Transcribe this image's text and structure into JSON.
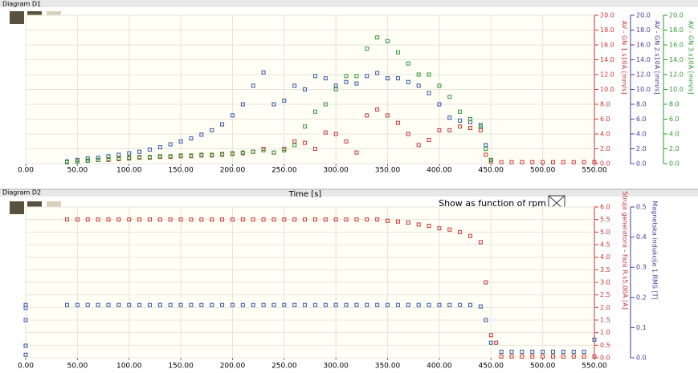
{
  "chart_data": [
    {
      "type": "scatter",
      "title": "Diagram D1",
      "xlabel": "Time [s]",
      "xlim": [
        0,
        550
      ],
      "xticks": [
        {
          "value": 0,
          "label": "0.00"
        },
        {
          "value": 50,
          "label": "50.00"
        },
        {
          "value": 100,
          "label": "100.00"
        },
        {
          "value": 150,
          "label": "150.00"
        },
        {
          "value": 200,
          "label": "200.00"
        },
        {
          "value": 250,
          "label": "250.00"
        },
        {
          "value": 300,
          "label": "300.00"
        },
        {
          "value": 350,
          "label": "350.00"
        },
        {
          "value": 400,
          "label": "400.00"
        },
        {
          "value": 450,
          "label": "450.00"
        },
        {
          "value": 500,
          "label": "500.00"
        },
        {
          "value": 550,
          "label": "550.00"
        }
      ],
      "grid": true,
      "y_axes": [
        {
          "label": "AV - GN 1.s10A [mm/s]",
          "color": "#cc3333",
          "lim": [
            0,
            20
          ],
          "ticks": [
            {
              "value": 0,
              "label": "0.0"
            },
            {
              "value": 2,
              "label": "2.0"
            },
            {
              "value": 4,
              "label": "4.0"
            },
            {
              "value": 6,
              "label": "6.0"
            },
            {
              "value": 8,
              "label": "8.0"
            },
            {
              "value": 10,
              "label": "10.0"
            },
            {
              "value": 12,
              "label": "12.0"
            },
            {
              "value": 14,
              "label": "14.0"
            },
            {
              "value": 16,
              "label": "16.0"
            },
            {
              "value": 18,
              "label": "18.0"
            },
            {
              "value": 20,
              "label": "20.0"
            }
          ]
        },
        {
          "label": "AV - GN 2.s10A [mm/s]",
          "color": "#4a3a9a",
          "lim": [
            0,
            20
          ],
          "ticks": [
            {
              "value": 0,
              "label": "0.0"
            },
            {
              "value": 2,
              "label": "2.0"
            },
            {
              "value": 4,
              "label": "4.0"
            },
            {
              "value": 6,
              "label": "6.0"
            },
            {
              "value": 8,
              "label": "8.0"
            },
            {
              "value": 10,
              "label": "10.0"
            },
            {
              "value": 12,
              "label": "12.0"
            },
            {
              "value": 14,
              "label": "14.0"
            },
            {
              "value": 16,
              "label": "16.0"
            },
            {
              "value": 18,
              "label": "18.0"
            },
            {
              "value": 20,
              "label": "20.0"
            }
          ]
        },
        {
          "label": "AV - GN 3.s10A [mm/s]",
          "color": "#2e9a2e",
          "lim": [
            0,
            20
          ],
          "ticks": [
            {
              "value": 0,
              "label": "0.0"
            },
            {
              "value": 2,
              "label": "2.0"
            },
            {
              "value": 4,
              "label": "4.0"
            },
            {
              "value": 6,
              "label": "6.0"
            },
            {
              "value": 8,
              "label": "8.0"
            },
            {
              "value": 10,
              "label": "10.0"
            },
            {
              "value": 12,
              "label": "12.0"
            },
            {
              "value": 14,
              "label": "14.0"
            },
            {
              "value": 16,
              "label": "16.0"
            },
            {
              "value": 18,
              "label": "18.0"
            },
            {
              "value": 20,
              "label": "20.0"
            }
          ]
        }
      ],
      "series": [
        {
          "color": "#cc3333",
          "axis": 0,
          "x": [
            40,
            50,
            60,
            70,
            80,
            90,
            100,
            110,
            120,
            130,
            140,
            150,
            160,
            170,
            180,
            190,
            200,
            210,
            220,
            230,
            240,
            250,
            260,
            270,
            280,
            290,
            300,
            310,
            320,
            330,
            340,
            350,
            360,
            370,
            380,
            390,
            400,
            410,
            420,
            430,
            440,
            445,
            450,
            460,
            470,
            480,
            490,
            500,
            510,
            520,
            530,
            540,
            550
          ],
          "values": [
            0.2,
            0.3,
            0.4,
            0.5,
            0.5,
            0.6,
            0.7,
            0.8,
            0.8,
            0.9,
            0.9,
            1.0,
            1.0,
            1.1,
            1.1,
            1.2,
            1.3,
            1.4,
            1.6,
            2.0,
            1.5,
            2.0,
            3.0,
            2.8,
            2.0,
            4.2,
            4.0,
            3.0,
            1.5,
            6.5,
            7.3,
            6.5,
            5.5,
            4.0,
            2.5,
            3.2,
            4.5,
            4.5,
            5.0,
            4.8,
            4.5,
            1.2,
            0.3,
            0.2,
            0.2,
            0.2,
            0.2,
            0.2,
            0.2,
            0.2,
            0.2,
            0.2,
            0.2
          ]
        },
        {
          "color": "#3355aa",
          "axis": 1,
          "x": [
            40,
            50,
            60,
            70,
            80,
            90,
            100,
            110,
            120,
            130,
            140,
            150,
            160,
            170,
            180,
            190,
            200,
            210,
            220,
            230,
            240,
            250,
            260,
            270,
            280,
            290,
            300,
            310,
            320,
            330,
            340,
            350,
            360,
            370,
            380,
            390,
            400,
            410,
            420,
            430,
            440,
            445,
            450
          ],
          "values": [
            0.3,
            0.5,
            0.7,
            0.8,
            1.0,
            1.2,
            1.4,
            1.6,
            1.9,
            2.2,
            2.6,
            3.0,
            3.4,
            3.9,
            4.5,
            5.3,
            6.5,
            8.0,
            10.5,
            12.3,
            8.0,
            8.5,
            10.5,
            10.0,
            11.8,
            11.5,
            10.5,
            11.0,
            10.8,
            11.8,
            12.2,
            11.5,
            11.5,
            11.0,
            10.5,
            9.5,
            8.0,
            6.2,
            5.8,
            5.6,
            5.2,
            2.5,
            0.5
          ]
        },
        {
          "color": "#2e9a2e",
          "axis": 2,
          "x": [
            40,
            50,
            60,
            70,
            80,
            90,
            100,
            110,
            120,
            130,
            140,
            150,
            160,
            170,
            180,
            190,
            200,
            210,
            220,
            230,
            240,
            250,
            260,
            270,
            280,
            290,
            300,
            310,
            320,
            330,
            340,
            350,
            360,
            370,
            380,
            390,
            400,
            410,
            420,
            430,
            440,
            445,
            450
          ],
          "values": [
            0.2,
            0.3,
            0.4,
            0.5,
            0.6,
            0.7,
            0.8,
            0.9,
            0.9,
            1.0,
            1.0,
            1.1,
            1.1,
            1.2,
            1.2,
            1.3,
            1.4,
            1.5,
            1.6,
            1.8,
            1.5,
            1.8,
            2.5,
            5.0,
            7.0,
            8.0,
            10.0,
            11.8,
            11.8,
            15.5,
            17.0,
            16.5,
            15.0,
            13.5,
            12.0,
            12.0,
            10.5,
            9.0,
            7.0,
            6.0,
            5.0,
            2.0,
            0.5
          ]
        }
      ]
    },
    {
      "type": "scatter",
      "title": "Diagram D2",
      "annotation": "Show as function of rpm",
      "xlim": [
        0,
        550
      ],
      "xticks": [
        {
          "value": 0,
          "label": "0.00"
        },
        {
          "value": 50,
          "label": "50.00"
        },
        {
          "value": 100,
          "label": "100.00"
        },
        {
          "value": 150,
          "label": "150.00"
        },
        {
          "value": 200,
          "label": "200.00"
        },
        {
          "value": 250,
          "label": "250.00"
        },
        {
          "value": 300,
          "label": "300.00"
        },
        {
          "value": 350,
          "label": "350.00"
        },
        {
          "value": 400,
          "label": "400.00"
        },
        {
          "value": 450,
          "label": "450.00"
        },
        {
          "value": 500,
          "label": "500.00"
        },
        {
          "value": 550,
          "label": "550.00"
        }
      ],
      "grid": true,
      "y_axes": [
        {
          "label": "Struja generatora - faza R.s5.00A [A]",
          "color": "#cc3333",
          "lim": [
            0,
            6
          ],
          "ticks": [
            {
              "value": 0,
              "label": "0.0"
            },
            {
              "value": 0.5,
              "label": "0.5"
            },
            {
              "value": 1,
              "label": "1.0"
            },
            {
              "value": 1.5,
              "label": "1.5"
            },
            {
              "value": 2,
              "label": "2.0"
            },
            {
              "value": 2.5,
              "label": "2.5"
            },
            {
              "value": 3,
              "label": "3.0"
            },
            {
              "value": 3.5,
              "label": "3.5"
            },
            {
              "value": 4,
              "label": "4.0"
            },
            {
              "value": 4.5,
              "label": "4.5"
            },
            {
              "value": 5,
              "label": "5.0"
            },
            {
              "value": 5.5,
              "label": "5.5"
            },
            {
              "value": 6,
              "label": "6.0"
            }
          ]
        },
        {
          "label": "Magnetska indukcija 1.RMS [T]",
          "color": "#4a3a9a",
          "lim": [
            0,
            0.5
          ],
          "ticks": [
            {
              "value": 0,
              "label": "0.0"
            },
            {
              "value": 0.1,
              "label": "0.1"
            },
            {
              "value": 0.2,
              "label": "0.2"
            },
            {
              "value": 0.3,
              "label": "0.3"
            },
            {
              "value": 0.4,
              "label": "0.4"
            },
            {
              "value": 0.5,
              "label": "0.5"
            }
          ]
        }
      ],
      "series": [
        {
          "color": "#cc3333",
          "axis": 0,
          "x": [
            40,
            50,
            60,
            70,
            80,
            90,
            100,
            110,
            120,
            130,
            140,
            150,
            160,
            170,
            180,
            190,
            200,
            210,
            220,
            230,
            240,
            250,
            260,
            270,
            280,
            290,
            300,
            310,
            320,
            330,
            340,
            350,
            360,
            370,
            380,
            390,
            400,
            410,
            420,
            430,
            440,
            445,
            450,
            455,
            460,
            470,
            480,
            490,
            500,
            510,
            520,
            530,
            540,
            550
          ],
          "values": [
            5.5,
            5.5,
            5.5,
            5.5,
            5.5,
            5.5,
            5.5,
            5.5,
            5.5,
            5.5,
            5.5,
            5.5,
            5.5,
            5.5,
            5.5,
            5.5,
            5.5,
            5.5,
            5.5,
            5.5,
            5.5,
            5.5,
            5.5,
            5.5,
            5.5,
            5.5,
            5.5,
            5.5,
            5.5,
            5.5,
            5.5,
            5.45,
            5.42,
            5.38,
            5.3,
            5.25,
            5.15,
            5.1,
            5.0,
            4.85,
            4.6,
            3.0,
            0.9,
            0.6,
            0.05,
            0.05,
            0.05,
            0.05,
            0.05,
            0.05,
            0.05,
            0.05,
            0.05,
            0.05
          ]
        },
        {
          "color": "#3355aa",
          "axis": 1,
          "x": [
            0,
            0,
            0,
            0,
            0,
            40,
            50,
            60,
            70,
            80,
            90,
            100,
            110,
            120,
            130,
            140,
            150,
            160,
            170,
            180,
            190,
            200,
            210,
            220,
            230,
            240,
            250,
            260,
            270,
            280,
            290,
            300,
            310,
            320,
            330,
            340,
            350,
            360,
            370,
            380,
            390,
            400,
            410,
            420,
            430,
            440,
            445,
            450,
            460,
            470,
            480,
            490,
            500,
            510,
            520,
            530,
            540,
            550
          ],
          "values": [
            0.175,
            0.165,
            0.125,
            0.04,
            0.01,
            0.175,
            0.175,
            0.175,
            0.175,
            0.175,
            0.175,
            0.175,
            0.175,
            0.175,
            0.175,
            0.175,
            0.175,
            0.175,
            0.175,
            0.175,
            0.175,
            0.175,
            0.175,
            0.175,
            0.175,
            0.175,
            0.175,
            0.175,
            0.175,
            0.175,
            0.175,
            0.175,
            0.175,
            0.175,
            0.175,
            0.175,
            0.175,
            0.175,
            0.175,
            0.175,
            0.175,
            0.175,
            0.175,
            0.175,
            0.175,
            0.17,
            0.125,
            0.05,
            0.02,
            0.02,
            0.02,
            0.02,
            0.02,
            0.02,
            0.02,
            0.02,
            0.02,
            0.06
          ]
        }
      ]
    }
  ]
}
